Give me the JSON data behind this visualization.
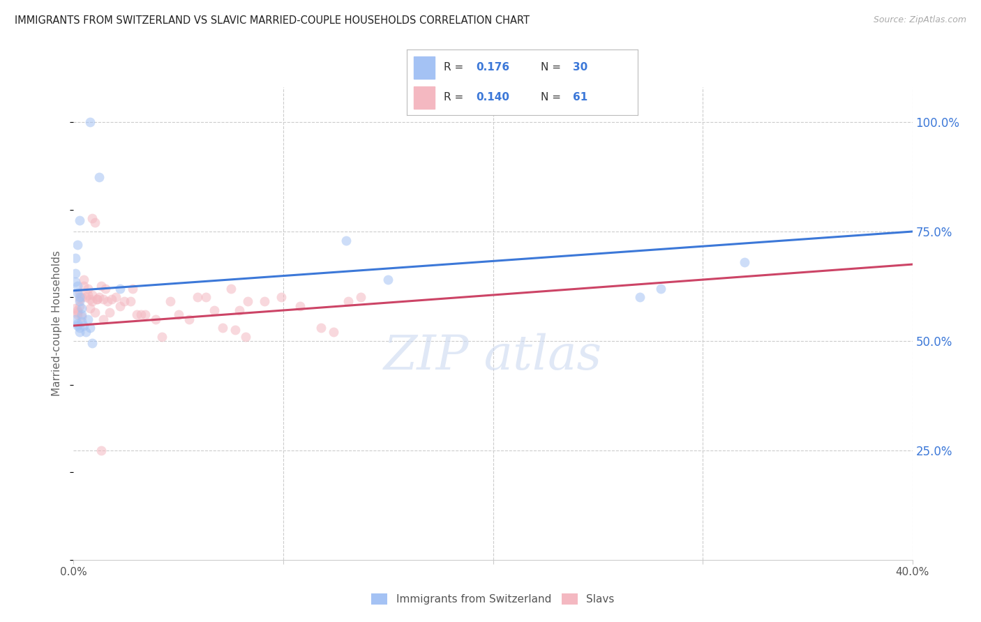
{
  "title": "IMMIGRANTS FROM SWITZERLAND VS SLAVIC MARRIED-COUPLE HOUSEHOLDS CORRELATION CHART",
  "source": "Source: ZipAtlas.com",
  "ylabel": "Married-couple Households",
  "ytick_labels": [
    "100.0%",
    "75.0%",
    "50.0%",
    "25.0%"
  ],
  "ytick_vals": [
    1.0,
    0.75,
    0.5,
    0.25
  ],
  "legend1_label": "Immigrants from Switzerland",
  "legend2_label": "Slavs",
  "R1": 0.176,
  "N1": 30,
  "R2": 0.14,
  "N2": 61,
  "blue_scatter_color": "#a4c2f4",
  "pink_scatter_color": "#f4b8c1",
  "line_blue": "#3c78d8",
  "line_pink": "#cc4466",
  "text_color": "#222222",
  "source_color": "#aaaaaa",
  "legend_val_color": "#3c78d8",
  "grid_color": "#cccccc",
  "xmin": 0.0,
  "xmax": 0.4,
  "ymin": 0.0,
  "ymax": 1.08,
  "marker_size": 100,
  "alpha": 0.55,
  "blue_x": [
    0.008,
    0.012,
    0.003,
    0.002,
    0.001,
    0.001,
    0.001,
    0.002,
    0.002,
    0.003,
    0.003,
    0.004,
    0.004,
    0.004,
    0.005,
    0.006,
    0.007,
    0.008,
    0.009,
    0.022,
    0.001,
    0.002,
    0.002,
    0.003,
    0.003,
    0.28,
    0.32,
    0.15,
    0.27,
    0.13
  ],
  "blue_y": [
    1.0,
    0.875,
    0.775,
    0.72,
    0.69,
    0.655,
    0.635,
    0.625,
    0.61,
    0.6,
    0.59,
    0.575,
    0.56,
    0.545,
    0.535,
    0.52,
    0.55,
    0.53,
    0.495,
    0.62,
    0.55,
    0.54,
    0.535,
    0.53,
    0.52,
    0.62,
    0.68,
    0.64,
    0.6,
    0.73
  ],
  "pink_x": [
    0.001,
    0.002,
    0.002,
    0.002,
    0.003,
    0.003,
    0.003,
    0.004,
    0.004,
    0.005,
    0.005,
    0.006,
    0.007,
    0.007,
    0.008,
    0.008,
    0.009,
    0.009,
    0.01,
    0.011,
    0.011,
    0.012,
    0.013,
    0.014,
    0.014,
    0.015,
    0.016,
    0.017,
    0.018,
    0.02,
    0.022,
    0.024,
    0.027,
    0.028,
    0.03,
    0.032,
    0.034,
    0.039,
    0.042,
    0.046,
    0.05,
    0.055,
    0.059,
    0.063,
    0.067,
    0.075,
    0.083,
    0.091,
    0.099,
    0.108,
    0.071,
    0.077,
    0.082,
    0.118,
    0.124,
    0.131,
    0.137,
    0.009,
    0.01,
    0.013,
    0.079
  ],
  "pink_y": [
    0.575,
    0.57,
    0.565,
    0.56,
    0.61,
    0.595,
    0.58,
    0.555,
    0.6,
    0.64,
    0.625,
    0.6,
    0.62,
    0.605,
    0.595,
    0.575,
    0.605,
    0.59,
    0.565,
    0.595,
    0.595,
    0.6,
    0.625,
    0.595,
    0.55,
    0.62,
    0.59,
    0.565,
    0.595,
    0.6,
    0.58,
    0.59,
    0.59,
    0.62,
    0.56,
    0.56,
    0.56,
    0.55,
    0.51,
    0.59,
    0.56,
    0.55,
    0.6,
    0.6,
    0.57,
    0.62,
    0.59,
    0.59,
    0.6,
    0.58,
    0.53,
    0.525,
    0.51,
    0.53,
    0.52,
    0.59,
    0.6,
    0.78,
    0.77,
    0.25,
    0.57
  ]
}
